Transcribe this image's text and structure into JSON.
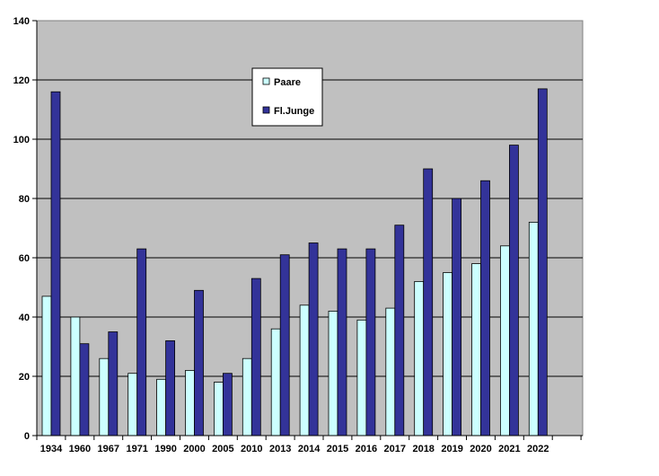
{
  "chart_data": {
    "type": "bar",
    "title": "",
    "xlabel": "",
    "ylabel": "",
    "categories": [
      "1934",
      "1960",
      "1967",
      "1971",
      "1990",
      "2000",
      "2005",
      "2010",
      "2013",
      "2014",
      "2015",
      "2016",
      "2017",
      "2018",
      "2019",
      "2020",
      "2021",
      "2022"
    ],
    "series": [
      {
        "name": "Paare",
        "color": "#ccffff",
        "values": [
          47,
          40,
          26,
          21,
          19,
          22,
          18,
          26,
          36,
          44,
          42,
          39,
          43,
          52,
          55,
          58,
          64,
          72
        ]
      },
      {
        "name": "Fl.Junge",
        "color": "#333399",
        "values": [
          116,
          31,
          35,
          63,
          32,
          49,
          21,
          53,
          61,
          65,
          63,
          63,
          71,
          90,
          80,
          86,
          98,
          117
        ]
      }
    ],
    "ylim": [
      0,
      140
    ],
    "yticks": [
      0,
      20,
      40,
      60,
      80,
      100,
      120,
      140
    ],
    "grid": true,
    "plot_background": "#c0c0c0",
    "legend_position": "top-center"
  }
}
